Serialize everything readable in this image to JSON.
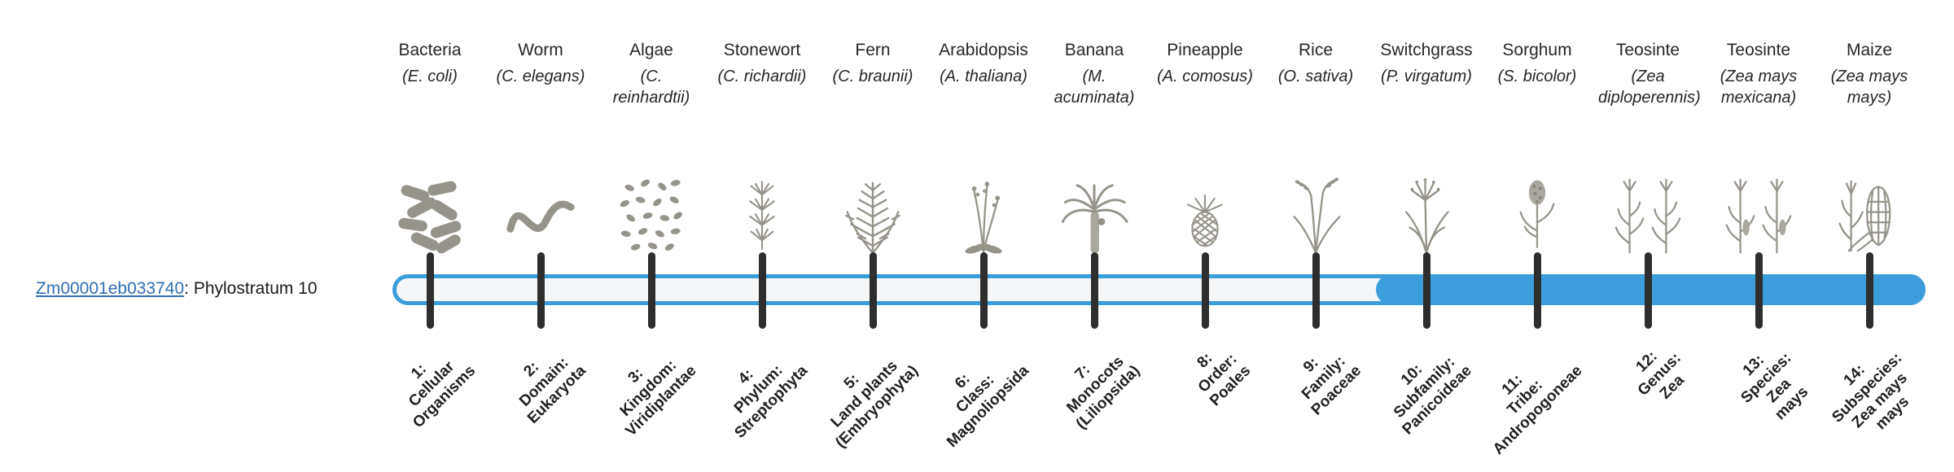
{
  "gene": {
    "id": "Zm00001eb033740",
    "suffix": ": Phylostratum 10",
    "link_color": "#2f6eb4"
  },
  "bar": {
    "color": "#3b9edb",
    "track_color": "#f4f6f8",
    "tick_color": "#2e2e2e",
    "fill_start_stratum": 10,
    "total_strata": 14
  },
  "strata": [
    {
      "index": "1",
      "name": "Bacteria",
      "species": "(E. coli)",
      "icon": "bacteria-icon",
      "tick_label": [
        "1:",
        "Cellular",
        "Organisms"
      ]
    },
    {
      "index": "2",
      "name": "Worm",
      "species": "(C. elegans)",
      "icon": "worm-icon",
      "tick_label": [
        "2:",
        "Domain:",
        "Eukaryota"
      ]
    },
    {
      "index": "3",
      "name": "Algae",
      "species": "(C. reinhardtii)",
      "icon": "algae-icon",
      "tick_label": [
        "3:",
        "Kingdom:",
        "Viridiplantae"
      ]
    },
    {
      "index": "4",
      "name": "Stonewort",
      "species": "(C. richardii)",
      "icon": "stonewort-icon",
      "tick_label": [
        "4:",
        "Phylum:",
        "Streptophyta"
      ]
    },
    {
      "index": "5",
      "name": "Fern",
      "species": "(C. braunii)",
      "icon": "fern-icon",
      "tick_label": [
        "5:",
        "Land plants",
        "(Embryophyta)"
      ]
    },
    {
      "index": "6",
      "name": "Arabidopsis",
      "species": "(A. thaliana)",
      "icon": "arabidopsis-icon",
      "tick_label": [
        "6:",
        "Class:",
        "Magnoliopsida"
      ]
    },
    {
      "index": "7",
      "name": "Banana",
      "species": "(M. acuminata)",
      "icon": "banana-icon",
      "tick_label": [
        "7:",
        "Monocots",
        "(Liliopsida)"
      ]
    },
    {
      "index": "8",
      "name": "Pineapple",
      "species": "(A. comosus)",
      "icon": "pineapple-icon",
      "tick_label": [
        "8:",
        "Order:",
        "Poales"
      ]
    },
    {
      "index": "9",
      "name": "Rice",
      "species": "(O. sativa)",
      "icon": "rice-icon",
      "tick_label": [
        "9:",
        "Family:",
        "Poaceae"
      ]
    },
    {
      "index": "10",
      "name": "Switchgrass",
      "species": "(P. virgatum)",
      "icon": "switchgrass-icon",
      "tick_label": [
        "10:",
        "Subfamily:",
        "Panicoideae"
      ]
    },
    {
      "index": "11",
      "name": "Sorghum",
      "species": "(S. bicolor)",
      "icon": "sorghum-icon",
      "tick_label": [
        "11:",
        "Tribe:",
        "Andropogoneae"
      ]
    },
    {
      "index": "12",
      "name": "Teosinte",
      "species": "(Zea diploperennis)",
      "icon": "teosinte-diploperennis-icon",
      "tick_label": [
        "12:",
        "Genus:",
        "Zea"
      ]
    },
    {
      "index": "13",
      "name": "Teosinte",
      "species": "(Zea mays mexicana)",
      "icon": "teosinte-mexicana-icon",
      "tick_label": [
        "13:",
        "Species:",
        "Zea",
        "mays"
      ]
    },
    {
      "index": "14",
      "name": "Maize",
      "species": "(Zea mays mays)",
      "icon": "maize-icon",
      "tick_label": [
        "14:",
        "Subspecies:",
        "Zea mays",
        "mays"
      ]
    }
  ]
}
